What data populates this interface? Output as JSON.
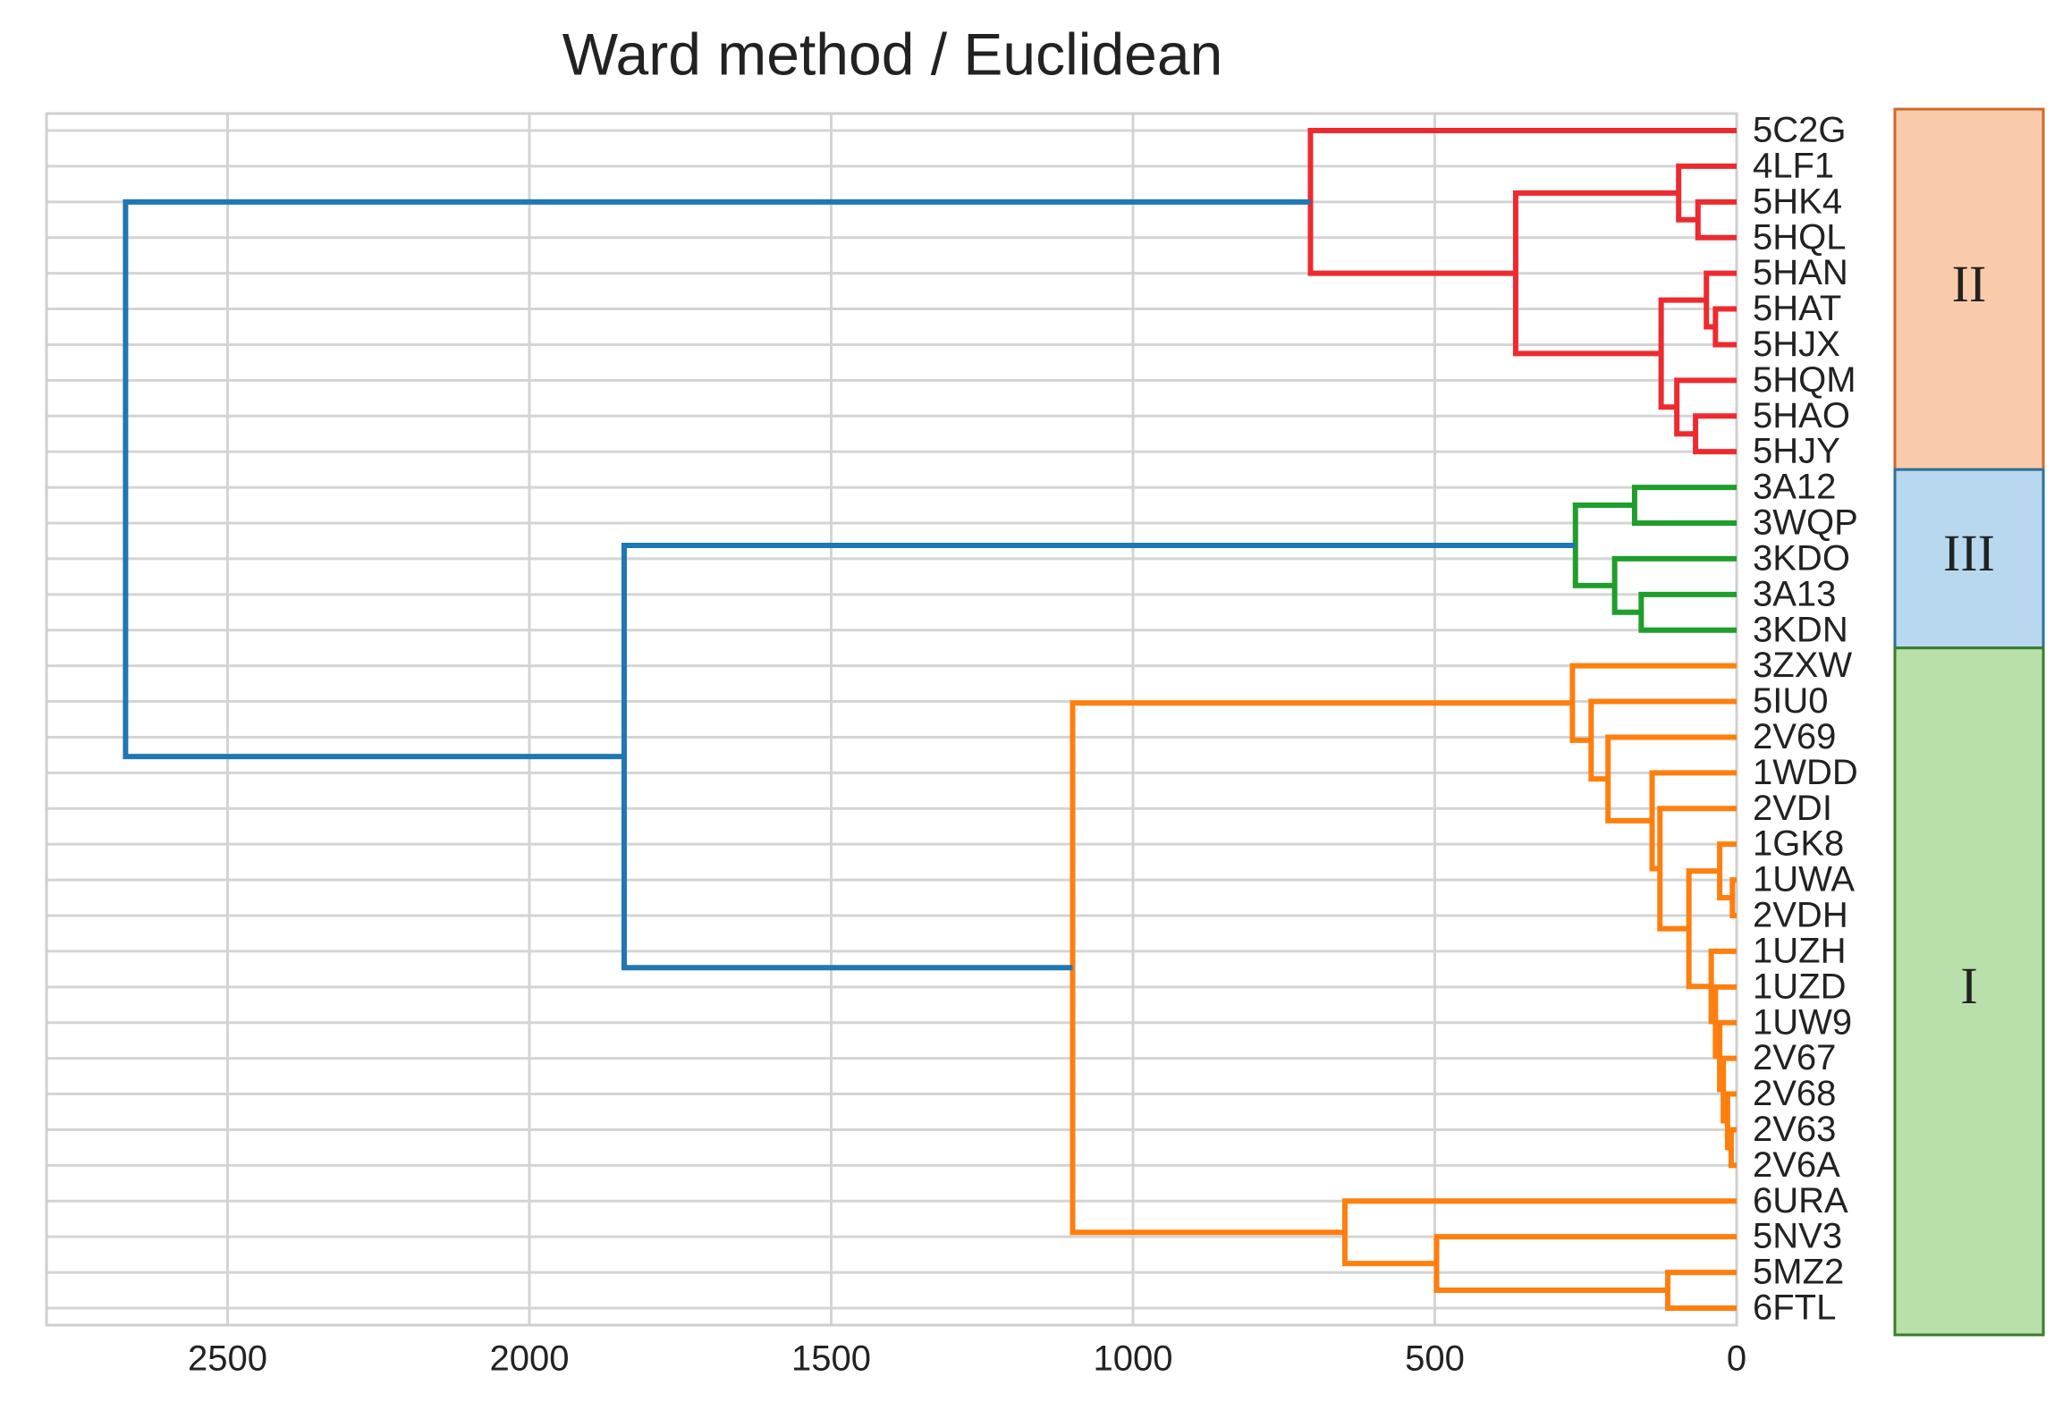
{
  "chart_data": {
    "type": "dendrogram",
    "title": "Ward method / Euclidean",
    "leaves": [
      "5C2G",
      "4LF1",
      "5HK4",
      "5HQL",
      "5HAN",
      "5HAT",
      "5HJX",
      "5HQM",
      "5HAO",
      "5HJY",
      "3A12",
      "3WQP",
      "3KDO",
      "3A13",
      "3KDN",
      "3ZXW",
      "5IU0",
      "2V69",
      "1WDD",
      "2VDI",
      "1GK8",
      "1UWA",
      "2VDH",
      "1UZH",
      "1UZD",
      "1UW9",
      "2V67",
      "2V68",
      "2V63",
      "2V6A",
      "6URA",
      "5NV3",
      "5MZ2",
      "6FTL"
    ],
    "merges": [
      {
        "children": [
          2,
          3
        ],
        "height": 64,
        "color": "#ee2a2e"
      },
      {
        "children": [
          1,
          34
        ],
        "height": 96,
        "color": "#ee2a2e"
      },
      {
        "children": [
          5,
          6
        ],
        "height": 35,
        "color": "#ee2a2e"
      },
      {
        "children": [
          4,
          36
        ],
        "height": 50,
        "color": "#ee2a2e"
      },
      {
        "children": [
          8,
          9
        ],
        "height": 68,
        "color": "#ee2a2e"
      },
      {
        "children": [
          7,
          38
        ],
        "height": 99,
        "color": "#ee2a2e"
      },
      {
        "children": [
          37,
          39
        ],
        "height": 125,
        "color": "#ee2a2e"
      },
      {
        "children": [
          35,
          40
        ],
        "height": 366,
        "color": "#ee2a2e"
      },
      {
        "children": [
          0,
          41
        ],
        "height": 706,
        "color": "#ee2a2e"
      },
      {
        "children": [
          10,
          11
        ],
        "height": 169,
        "color": "#1f9e2c"
      },
      {
        "children": [
          13,
          14
        ],
        "height": 158,
        "color": "#1f9e2c"
      },
      {
        "children": [
          12,
          44
        ],
        "height": 202,
        "color": "#1f9e2c"
      },
      {
        "children": [
          43,
          45
        ],
        "height": 267,
        "color": "#1f9e2c"
      },
      {
        "children": [
          28,
          29
        ],
        "height": 9,
        "color": "#ff7f0e"
      },
      {
        "children": [
          27,
          47
        ],
        "height": 15,
        "color": "#ff7f0e"
      },
      {
        "children": [
          26,
          48
        ],
        "height": 22,
        "color": "#ff7f0e"
      },
      {
        "children": [
          25,
          49
        ],
        "height": 28,
        "color": "#ff7f0e"
      },
      {
        "children": [
          24,
          50
        ],
        "height": 35,
        "color": "#ff7f0e"
      },
      {
        "children": [
          23,
          51
        ],
        "height": 42,
        "color": "#ff7f0e"
      },
      {
        "children": [
          21,
          22
        ],
        "height": 7,
        "color": "#ff7f0e"
      },
      {
        "children": [
          20,
          53
        ],
        "height": 28,
        "color": "#ff7f0e"
      },
      {
        "children": [
          54,
          52
        ],
        "height": 79,
        "color": "#ff7f0e"
      },
      {
        "children": [
          19,
          55
        ],
        "height": 127,
        "color": "#ff7f0e"
      },
      {
        "children": [
          18,
          56
        ],
        "height": 140,
        "color": "#ff7f0e"
      },
      {
        "children": [
          17,
          57
        ],
        "height": 213,
        "color": "#ff7f0e"
      },
      {
        "children": [
          16,
          58
        ],
        "height": 241,
        "color": "#ff7f0e"
      },
      {
        "children": [
          15,
          59
        ],
        "height": 272,
        "color": "#ff7f0e"
      },
      {
        "children": [
          32,
          33
        ],
        "height": 114,
        "color": "#ff7f0e"
      },
      {
        "children": [
          31,
          61
        ],
        "height": 497,
        "color": "#ff7f0e"
      },
      {
        "children": [
          30,
          62
        ],
        "height": 649,
        "color": "#ff7f0e"
      },
      {
        "children": [
          60,
          63
        ],
        "height": 1100,
        "color": "#ff7f0e"
      },
      {
        "children": [
          46,
          64
        ],
        "height": 1843,
        "color": "#1f77b4"
      },
      {
        "children": [
          42,
          65
        ],
        "height": 2669,
        "color": "#1f77b4"
      }
    ],
    "xlim": [
      2800,
      0
    ],
    "xticks": [
      2500,
      2000,
      1500,
      1000,
      500,
      0
    ],
    "grid": true,
    "clusters": [
      {
        "label": "II",
        "first": 0,
        "last": 9,
        "color": "#f9cbaa",
        "border": "#cc6a2a"
      },
      {
        "label": "III",
        "first": 10,
        "last": 14,
        "color": "#b7d8ee",
        "border": "#2f6f9a"
      },
      {
        "label": "I",
        "first": 15,
        "last": 33,
        "color": "#b9dfaa",
        "border": "#3a7d2c"
      }
    ]
  }
}
